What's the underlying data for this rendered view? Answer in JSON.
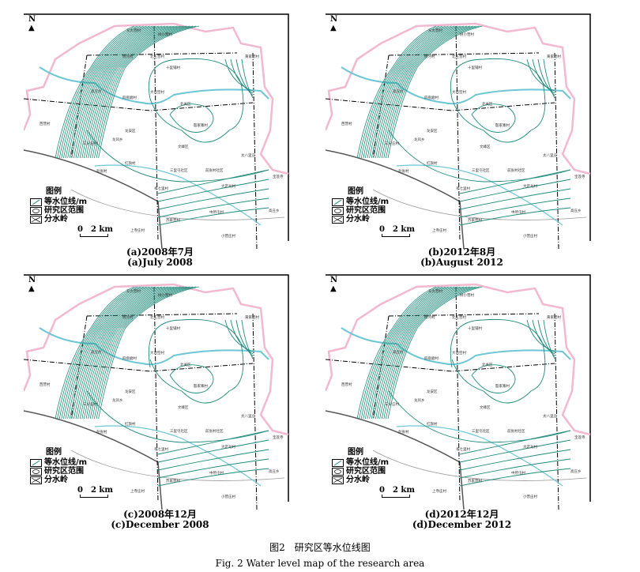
{
  "figure": {
    "caption_cn": "图2　研究区等水位线图",
    "caption_en": "Fig. 2 Water level map of the research area"
  },
  "legend": {
    "title": "图例",
    "items": [
      "等水位线/m",
      "研究区范围",
      "分水岭"
    ],
    "scale_zero": "0",
    "scale_end": "2 km",
    "north": "N"
  },
  "colors": {
    "contour": "#1f8a7a",
    "river": "#6cc6d6",
    "boundary": "#f2b8d0",
    "divide": "#000000"
  },
  "places": [
    "东大营村",
    "树小营村",
    "杨河村",
    "北王营村",
    "十里铺村",
    "黄家营村",
    "西营村",
    "大司空村",
    "四盘磨村",
    "北关区",
    "高庄村",
    "龙安区",
    "龙凤乡",
    "三分庄村",
    "文峰区",
    "殷家寨村",
    "红旗村",
    "赵张村",
    "三里屯社区",
    "前张村社区",
    "太八里庄",
    "宝莲寺",
    "孝七里村",
    "大定龙村",
    "中所屯村",
    "苏家营村",
    "高庄乡",
    "上寺庄村",
    "小营庄村"
  ],
  "panels": [
    {
      "id": "a",
      "caption_cn": "(a)2008年7月",
      "caption_en": "(a)July 2008"
    },
    {
      "id": "b",
      "caption_cn": "(b)2012年8月",
      "caption_en": "(b)August 2012"
    },
    {
      "id": "c",
      "caption_cn": "(c)2008年12月",
      "caption_en": "(c)December 2008"
    },
    {
      "id": "d",
      "caption_cn": "(d)2012年12月",
      "caption_en": "(d)December 2012"
    }
  ]
}
